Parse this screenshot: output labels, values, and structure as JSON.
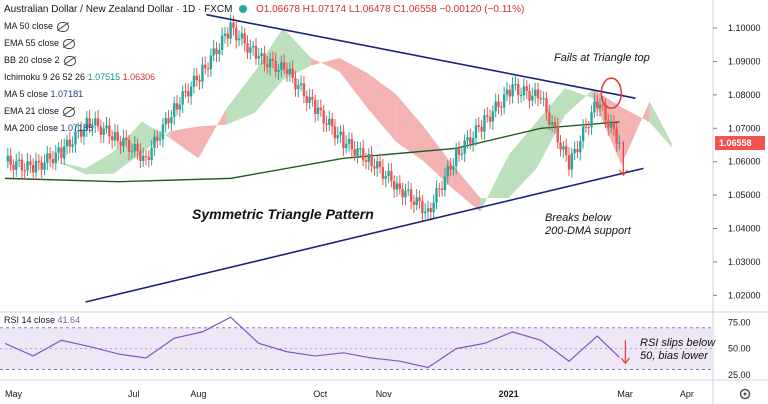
{
  "header": {
    "symbol": "Australian Dollar / New Zealand Dollar · 1D · FXCM",
    "status_dot_color": "#26a69a",
    "ohlc": "O1.06678 H1.07174 L1.06478 C1.06558 −0.00120 (−0.11%)"
  },
  "indicators": [
    {
      "label": "MA 50 close",
      "hidden": true
    },
    {
      "label": "EMA 55 close",
      "hidden": true
    },
    {
      "label": "BB 20 close 2",
      "hidden": true
    },
    {
      "label": "Ichimoku 9 26 52 26",
      "v1": "1.07515",
      "v2": "1.06306"
    },
    {
      "label": "MA 5 close",
      "v3": "1.07181"
    },
    {
      "label": "EMA 21 close",
      "hidden": true
    },
    {
      "label": "MA 200 close",
      "v3": "1.07185"
    }
  ],
  "annotations": {
    "fails": "Fails at Triangle top",
    "pattern": "Symmetric Triangle Pattern",
    "breaks_line1": "Breaks below",
    "breaks_line2": "200-DMA support",
    "rsi_line1": "RSI slips below",
    "rsi_line2": "50, bias lower"
  },
  "rsi_label": "RSI 14 close",
  "rsi_value": "41.64",
  "price_axis": [
    "1.10000",
    "1.09000",
    "1.08000",
    "1.07000",
    "1.06000",
    "1.05000",
    "1.04000",
    "1.03000",
    "1.02000"
  ],
  "last_price_tag": "1.06558",
  "rsi_axis": [
    "75.00",
    "50.00",
    "25.00"
  ],
  "time_axis": [
    "May",
    "Jul",
    "Aug",
    "Oct",
    "Nov",
    "2021",
    "Mar",
    "Apr"
  ],
  "colors": {
    "up": "#26a69a",
    "down": "#ef5350",
    "triangle": "#1a237e",
    "ma200": "#1b5e20",
    "cloud_bull": "#a5d6a7",
    "cloud_bear": "#ef9a9a",
    "rsi": "#7e57c2",
    "rsi_band": "#ede7f6",
    "highlight": "#e53935"
  },
  "chart_data": {
    "type": "candlestick",
    "instrument": "AUD/NZD",
    "timeframe": "1D",
    "y_range": [
      1.015,
      1.106
    ],
    "x_range": [
      "2020-05",
      "2021-04"
    ],
    "price_series": {
      "name": "AUDNZD",
      "dates": [
        "2020-04-27",
        "2020-05-11",
        "2020-05-25",
        "2020-06-08",
        "2020-06-22",
        "2020-07-06",
        "2020-07-20",
        "2020-08-03",
        "2020-08-17",
        "2020-08-31",
        "2020-09-14",
        "2020-09-28",
        "2020-10-12",
        "2020-10-26",
        "2020-11-09",
        "2020-11-23",
        "2020-12-07",
        "2020-12-21",
        "2021-01-04",
        "2021-01-18",
        "2021-02-01",
        "2021-02-15",
        "2021-02-26"
      ],
      "close": [
        1.06,
        1.058,
        1.063,
        1.072,
        1.067,
        1.061,
        1.076,
        1.087,
        1.1,
        1.091,
        1.087,
        1.076,
        1.066,
        1.06,
        1.052,
        1.045,
        1.062,
        1.072,
        1.082,
        1.079,
        1.059,
        1.078,
        1.0656
      ]
    },
    "ma200": {
      "dates": [
        "2020-04-27",
        "2020-06-22",
        "2020-08-17",
        "2020-10-12",
        "2020-12-07",
        "2021-01-18",
        "2021-02-26"
      ],
      "values": [
        1.055,
        1.054,
        1.055,
        1.061,
        1.064,
        1.07,
        1.0719
      ]
    },
    "triangle_upper": {
      "dates": [
        "2020-08-05",
        "2021-03-06"
      ],
      "values": [
        1.104,
        1.079
      ]
    },
    "triangle_lower": {
      "dates": [
        "2020-06-06",
        "2021-03-10"
      ],
      "values": [
        1.018,
        1.058
      ]
    },
    "last_close": 1.06558,
    "rsi": {
      "name": "RSI 14",
      "range": [
        20,
        85
      ],
      "upper_band": 70,
      "lower_band": 30,
      "dates": [
        "2020-04-27",
        "2020-05-11",
        "2020-05-25",
        "2020-06-08",
        "2020-06-22",
        "2020-07-06",
        "2020-07-20",
        "2020-08-03",
        "2020-08-17",
        "2020-08-31",
        "2020-09-14",
        "2020-09-28",
        "2020-10-12",
        "2020-10-26",
        "2020-11-09",
        "2020-11-23",
        "2020-12-07",
        "2020-12-21",
        "2021-01-04",
        "2021-01-18",
        "2021-02-01",
        "2021-02-15",
        "2021-02-26"
      ],
      "values": [
        55,
        43,
        58,
        52,
        45,
        41,
        60,
        66,
        80,
        55,
        47,
        43,
        46,
        41,
        38,
        32,
        50,
        55,
        66,
        58,
        38,
        62,
        41.64
      ]
    }
  }
}
